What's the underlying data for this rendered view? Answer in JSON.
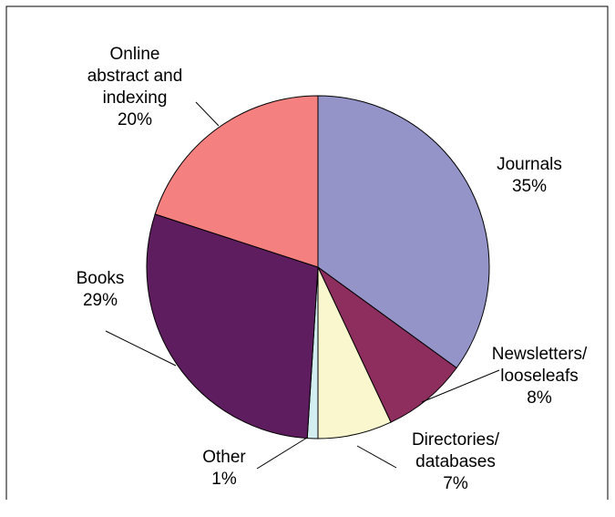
{
  "chart_data": {
    "type": "pie",
    "title": "",
    "slices": [
      {
        "label_lines": [
          "Journals"
        ],
        "percent_text": "35%",
        "value": 35,
        "color": "#9494C8"
      },
      {
        "label_lines": [
          "Newsletters/",
          "looseleafs"
        ],
        "percent_text": "8%",
        "value": 8,
        "color": "#8E2E5E"
      },
      {
        "label_lines": [
          "Directories/",
          "databases"
        ],
        "percent_text": "7%",
        "value": 7,
        "color": "#FAF7CF"
      },
      {
        "label_lines": [
          "Other"
        ],
        "percent_text": "1%",
        "value": 1,
        "color": "#D3EEF0"
      },
      {
        "label_lines": [
          "Books"
        ],
        "percent_text": "29%",
        "value": 29,
        "color": "#5E1D5E"
      },
      {
        "label_lines": [
          "Online",
          "abstract and",
          "indexing"
        ],
        "percent_text": "20%",
        "value": 20,
        "color": "#F48080"
      }
    ],
    "start_angle": "12 o'clock",
    "direction": "clockwise",
    "legend": "none",
    "labels": "outside with leader lines"
  }
}
